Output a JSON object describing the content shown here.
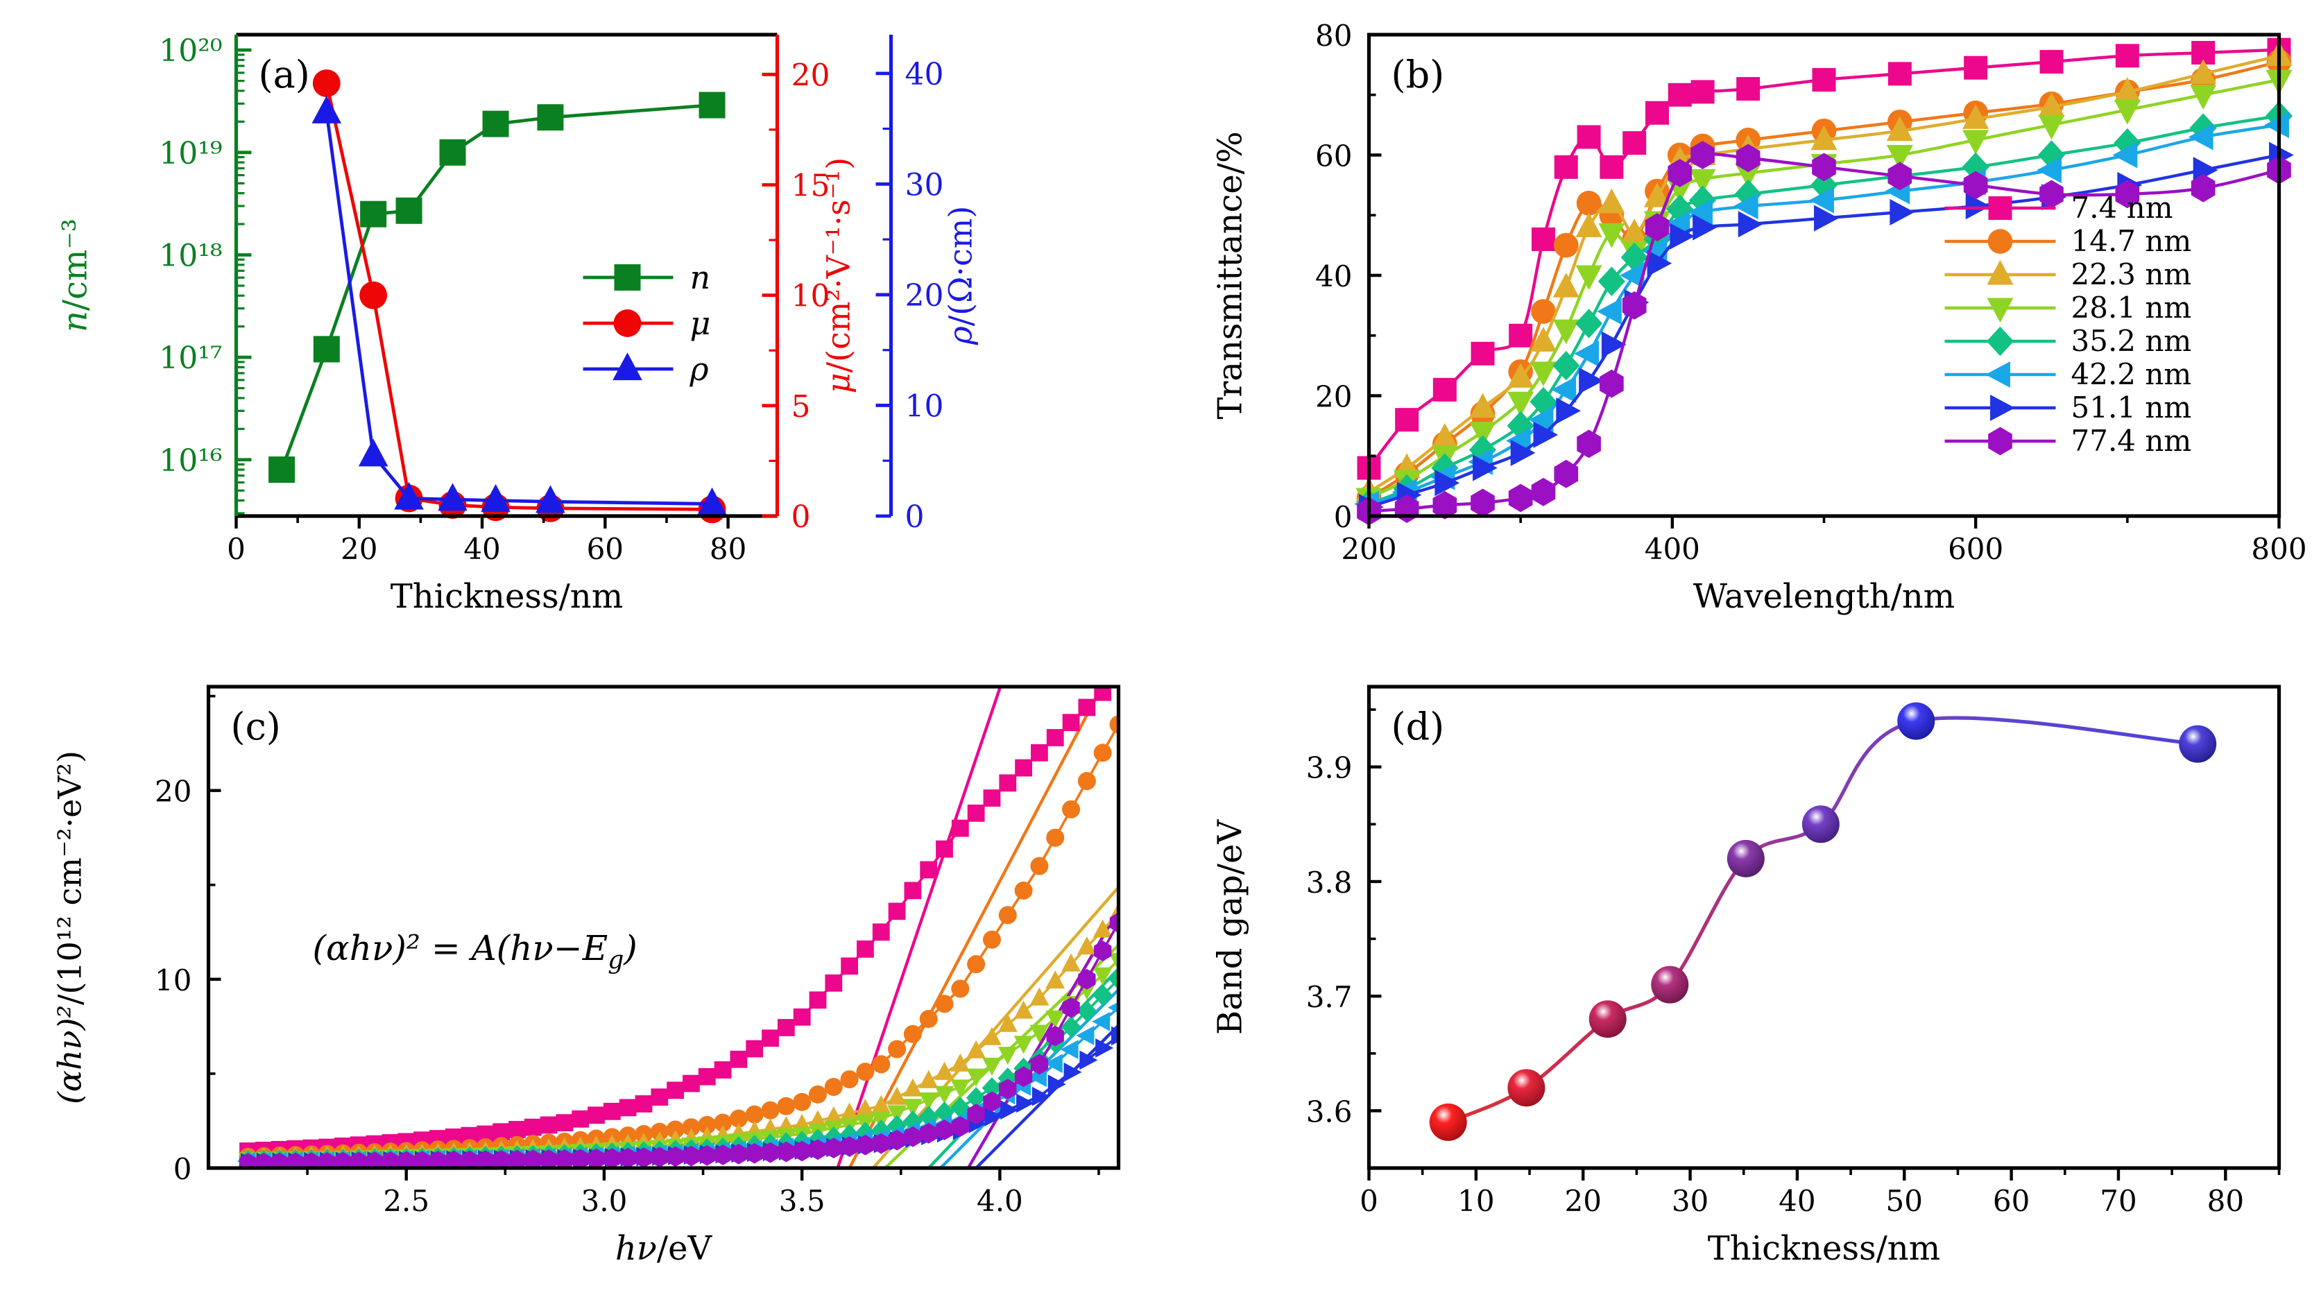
{
  "chart_data": [
    {
      "id": "a",
      "type": "line",
      "panel_label": "(a)",
      "x_axis": {
        "title": {
          "rest": "Thickness/nm"
        },
        "ticks": [
          0,
          20,
          40,
          60,
          80
        ],
        "minor": [
          10,
          30,
          50,
          70
        ],
        "range": [
          0,
          88
        ]
      },
      "y_n": {
        "title": {
          "it": "n",
          "rest": "/cm⁻³"
        },
        "color": "#0A8020",
        "tick_exponents": [
          16,
          17,
          18,
          19,
          20
        ],
        "tick_labels": [
          "10¹⁶",
          "10¹⁷",
          "10¹⁸",
          "10¹⁹",
          "10²⁰"
        ],
        "range_log": [
          15.45,
          20.15
        ]
      },
      "y_mu": {
        "title": {
          "it": "μ",
          "rest": "/(cm²·V⁻¹·s⁻¹)"
        },
        "color": "#EE0505",
        "ticks": [
          0,
          5,
          10,
          15,
          20
        ],
        "minor": [
          2.5,
          7.5,
          12.5,
          17.5
        ],
        "range": [
          0,
          21.8
        ]
      },
      "y_rho": {
        "title": {
          "it": "ρ",
          "rest": "/(Ω·cm)"
        },
        "color": "#1A1AE6",
        "ticks": [
          0,
          10,
          20,
          30,
          40
        ],
        "minor": [
          5,
          15,
          25,
          35
        ],
        "range": [
          0,
          43.5
        ]
      },
      "series": [
        {
          "key": "n",
          "label": "n",
          "axis": "n",
          "marker": "square",
          "color": "#0A8020",
          "x": [
            7.4,
            14.7,
            22.3,
            28.1,
            35.2,
            42.2,
            51.1,
            77.4
          ],
          "y": [
            8000000000000000.0,
            1.2e+17,
            2.5e+18,
            2.7e+18,
            1e+19,
            1.9e+19,
            2.2e+19,
            2.9e+19
          ]
        },
        {
          "key": "mu",
          "label": "μ",
          "axis": "mu",
          "marker": "circle",
          "color": "#EE0505",
          "x": [
            14.7,
            22.3,
            28.1,
            35.2,
            42.2,
            51.1,
            77.4
          ],
          "y": [
            19.6,
            10.0,
            0.8,
            0.5,
            0.4,
            0.35,
            0.3
          ]
        },
        {
          "key": "rho",
          "label": "ρ",
          "axis": "rho",
          "marker": "triangle-up",
          "color": "#1A1AE6",
          "x": [
            14.7,
            22.3,
            28.1,
            35.2,
            42.2,
            51.1,
            77.4
          ],
          "y": [
            36.5,
            5.5,
            1.6,
            1.5,
            1.4,
            1.3,
            1.1
          ]
        }
      ]
    },
    {
      "id": "b",
      "type": "line",
      "panel_label": "(b)",
      "x_axis": {
        "title": {
          "rest": "Wavelength/nm"
        },
        "ticks": [
          200,
          400,
          600,
          800
        ],
        "minor": [
          300,
          500,
          700
        ],
        "range": [
          200,
          800
        ]
      },
      "y_axis": {
        "title": {
          "rest": "Transmittance/%"
        },
        "ticks": [
          0,
          20,
          40,
          60,
          80
        ],
        "minor": [
          10,
          30,
          50,
          70
        ],
        "range": [
          0,
          80
        ]
      },
      "wavelengths": [
        200,
        225,
        250,
        275,
        300,
        315,
        330,
        345,
        360,
        375,
        390,
        405,
        420,
        450,
        500,
        550,
        600,
        650,
        700,
        750,
        800
      ],
      "series": [
        {
          "label": "7.4 nm",
          "marker": "square",
          "color": "#EC078D",
          "values": [
            8,
            16,
            21,
            27,
            30,
            46,
            58,
            63,
            58,
            62,
            67,
            70,
            70.5,
            71,
            72.5,
            73.5,
            74.5,
            75.5,
            76.5,
            77,
            77.5
          ]
        },
        {
          "label": "14.7 nm",
          "marker": "circle",
          "color": "#F07818",
          "values": [
            3,
            7,
            12,
            17,
            24,
            34,
            45,
            52,
            50,
            46,
            54,
            60,
            61.5,
            62.5,
            64,
            65.5,
            67,
            68.5,
            70.5,
            72.5,
            75.5
          ]
        },
        {
          "label": "22.3 nm",
          "marker": "triangle-up",
          "color": "#DFAC2C",
          "values": [
            4,
            8,
            13,
            18,
            23,
            29,
            38,
            48,
            52,
            47,
            53,
            59,
            60,
            61,
            62.5,
            64,
            66,
            68,
            70.5,
            73.5,
            76.5
          ]
        },
        {
          "label": "28.1 nm",
          "marker": "triangle-down",
          "color": "#8FD423",
          "values": [
            3,
            6,
            10,
            14,
            19,
            24,
            31,
            40,
            47,
            44,
            49,
            54.5,
            56,
            57,
            58.5,
            60,
            62.5,
            65,
            67.5,
            70,
            72.5
          ]
        },
        {
          "label": "35.2 nm",
          "marker": "diamond",
          "color": "#12C184",
          "values": [
            2,
            4.5,
            8,
            11,
            15,
            19,
            25,
            32,
            39,
            43,
            46,
            51,
            52.5,
            53.5,
            55,
            56.5,
            58,
            60,
            62,
            64.5,
            66.5
          ]
        },
        {
          "label": "42.2 nm",
          "marker": "triangle-left",
          "color": "#19A7E8",
          "values": [
            2,
            4,
            6.5,
            9,
            12.5,
            16,
            21,
            27,
            34,
            40,
            44,
            48.5,
            50.5,
            51.5,
            52.5,
            54,
            55.5,
            57.5,
            60,
            63,
            65
          ]
        },
        {
          "label": "51.1 nm",
          "marker": "triangle-right",
          "color": "#2133E3",
          "values": [
            1.5,
            3.5,
            5.5,
            8,
            10.5,
            13.5,
            17.5,
            22.5,
            28.5,
            35.5,
            42,
            46.5,
            48,
            48.5,
            49.5,
            50.5,
            51.5,
            53,
            55,
            57.5,
            60
          ]
        },
        {
          "label": "77.4 nm",
          "marker": "hexagon",
          "color": "#9C10C4",
          "values": [
            0.8,
            1.2,
            1.8,
            2.2,
            3,
            4,
            7,
            12,
            22,
            35,
            48,
            57,
            60,
            59.5,
            58,
            56.5,
            55,
            53.5,
            53.5,
            54.5,
            57.5
          ]
        }
      ],
      "legend_position": "inside-right-bottom"
    },
    {
      "id": "c",
      "type": "line",
      "panel_label": "(c)",
      "x_axis": {
        "title": {
          "it": "hν",
          "rest": "/eV"
        },
        "ticks": [
          2.5,
          3.0,
          3.5,
          4.0
        ],
        "tick_labels": [
          "2.5",
          "3.0",
          "3.5",
          "4.0"
        ],
        "minor": [
          2.25,
          2.75,
          3.25,
          3.75,
          4.25
        ],
        "range": [
          2.0,
          4.3
        ]
      },
      "y_axis": {
        "title": {
          "it": "(αhν)²",
          "rest": "/(10¹² cm⁻²·eV²)"
        },
        "ticks": [
          0,
          10,
          20
        ],
        "minor": [
          5,
          15,
          25
        ],
        "range": [
          0,
          25.5
        ]
      },
      "annotation": {
        "it": "(αhν)² = A(hν−E",
        "sub": "g",
        "rest": ")"
      },
      "x_samples": [
        2.1,
        2.3,
        2.5,
        2.7,
        2.9,
        3.1,
        3.3,
        3.5,
        3.7,
        3.9,
        4.1,
        4.3
      ],
      "series": [
        {
          "label": "7.4 nm",
          "marker": "square",
          "color": "#EC078D",
          "band_gap": 3.59,
          "fit_slope": 62,
          "values": [
            0.9,
            1.1,
            1.4,
            1.8,
            2.4,
            3.4,
            5.2,
            8.0,
            12.5,
            18,
            22,
            26
          ]
        },
        {
          "label": "14.7 nm",
          "marker": "circle",
          "color": "#F07818",
          "band_gap": 3.62,
          "fit_slope": 40,
          "values": [
            0.6,
            0.75,
            0.9,
            1.1,
            1.4,
            1.8,
            2.4,
            3.5,
            5.5,
            9.5,
            16,
            23.5
          ]
        },
        {
          "label": "22.3 nm",
          "marker": "triangle-up",
          "color": "#DFAC2C",
          "band_gap": 3.68,
          "fit_slope": 24,
          "values": [
            0.5,
            0.6,
            0.7,
            0.85,
            1.05,
            1.3,
            1.7,
            2.3,
            3.3,
            5.5,
            9.0,
            13.5
          ]
        },
        {
          "label": "28.1 nm",
          "marker": "triangle-down",
          "color": "#8FD423",
          "band_gap": 3.71,
          "fit_slope": 20,
          "values": [
            0.45,
            0.5,
            0.6,
            0.7,
            0.85,
            1.05,
            1.35,
            1.8,
            2.6,
            4.3,
            7.2,
            11.0
          ]
        },
        {
          "label": "35.2 nm",
          "marker": "diamond",
          "color": "#12C184",
          "band_gap": 3.82,
          "fit_slope": 22,
          "values": [
            0.4,
            0.45,
            0.5,
            0.6,
            0.7,
            0.85,
            1.05,
            1.4,
            2.0,
            3.2,
            5.8,
            10.0
          ]
        },
        {
          "label": "42.2 nm",
          "marker": "triangle-left",
          "color": "#19A7E8",
          "band_gap": 3.85,
          "fit_slope": 21,
          "values": [
            0.35,
            0.4,
            0.45,
            0.5,
            0.6,
            0.7,
            0.9,
            1.15,
            1.6,
            2.5,
            4.8,
            8.5
          ]
        },
        {
          "label": "51.1 nm",
          "marker": "triangle-right",
          "color": "#2133E3",
          "band_gap": 3.94,
          "fit_slope": 21,
          "values": [
            0.3,
            0.35,
            0.4,
            0.45,
            0.5,
            0.6,
            0.75,
            0.95,
            1.3,
            2.0,
            3.8,
            7.0
          ]
        },
        {
          "label": "77.4 nm",
          "marker": "hexagon",
          "color": "#9C10C4",
          "band_gap": 3.92,
          "fit_slope": 36,
          "values": [
            0.25,
            0.3,
            0.35,
            0.4,
            0.45,
            0.55,
            0.7,
            0.9,
            1.3,
            2.2,
            5.5,
            13.0
          ]
        }
      ]
    },
    {
      "id": "d",
      "type": "scatter",
      "panel_label": "(d)",
      "x_axis": {
        "title": {
          "rest": "Thickness/nm"
        },
        "ticks": [
          0,
          10,
          20,
          30,
          40,
          50,
          60,
          70,
          80
        ],
        "minor": [
          5,
          15,
          25,
          35,
          45,
          55,
          65,
          75,
          85
        ],
        "range": [
          0,
          85
        ]
      },
      "y_axis": {
        "title": {
          "rest": "Band gap/eV"
        },
        "ticks": [
          3.6,
          3.7,
          3.8,
          3.9
        ],
        "tick_labels": [
          "3.6",
          "3.7",
          "3.8",
          "3.9"
        ],
        "minor": [
          3.55,
          3.65,
          3.75,
          3.85,
          3.95
        ],
        "range": [
          3.55,
          3.97
        ]
      },
      "points": [
        {
          "thickness": 7.4,
          "band_gap": 3.59,
          "color": "#FF2222",
          "dark": "#A50D0D"
        },
        {
          "thickness": 14.7,
          "band_gap": 3.62,
          "color": "#E8283E",
          "dark": "#99101F"
        },
        {
          "thickness": 22.3,
          "band_gap": 3.68,
          "color": "#C92B63",
          "dark": "#7E1238"
        },
        {
          "thickness": 28.1,
          "band_gap": 3.71,
          "color": "#B23380",
          "dark": "#6E1549"
        },
        {
          "thickness": 35.2,
          "band_gap": 3.82,
          "color": "#8A3BAB",
          "dark": "#511B68"
        },
        {
          "thickness": 42.2,
          "band_gap": 3.85,
          "color": "#7540C8",
          "dark": "#3F1E7A"
        },
        {
          "thickness": 51.1,
          "band_gap": 3.94,
          "color": "#3D3BEF",
          "dark": "#1B1A9E"
        },
        {
          "thickness": 77.4,
          "band_gap": 3.92,
          "color": "#4E42D9",
          "dark": "#241C8C"
        }
      ],
      "curve_gradient": [
        "#E03030",
        "#C22B5E",
        "#8A3BAB",
        "#5A45D0",
        "#4E42D9"
      ]
    }
  ],
  "style": {
    "axis_color": "#000000",
    "background": "#ffffff"
  }
}
